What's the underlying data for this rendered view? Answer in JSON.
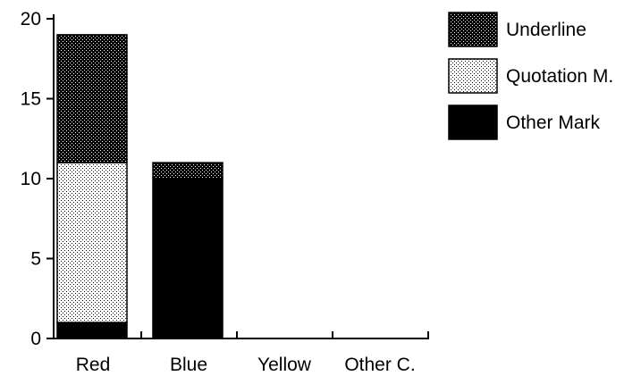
{
  "chart_data": {
    "type": "bar",
    "stacked": true,
    "categories": [
      "Red",
      "Blue",
      "Yellow",
      "Other C."
    ],
    "series": [
      {
        "name": "Other Mark",
        "values": [
          1,
          10,
          0,
          0
        ],
        "pattern": "solid"
      },
      {
        "name": "Quotation M.",
        "values": [
          10,
          0,
          0,
          0
        ],
        "pattern": "light-dots"
      },
      {
        "name": "Underline",
        "values": [
          8,
          1,
          0,
          0
        ],
        "pattern": "dark-dots"
      }
    ],
    "legend_order": [
      "Underline",
      "Quotation M.",
      "Other Mark"
    ],
    "ylim": [
      0,
      20
    ],
    "yticks": [
      0,
      5,
      10,
      15,
      20
    ],
    "legend_position": "right",
    "grid": false,
    "colors": {
      "ink": "#000000",
      "background": "#ffffff"
    }
  }
}
